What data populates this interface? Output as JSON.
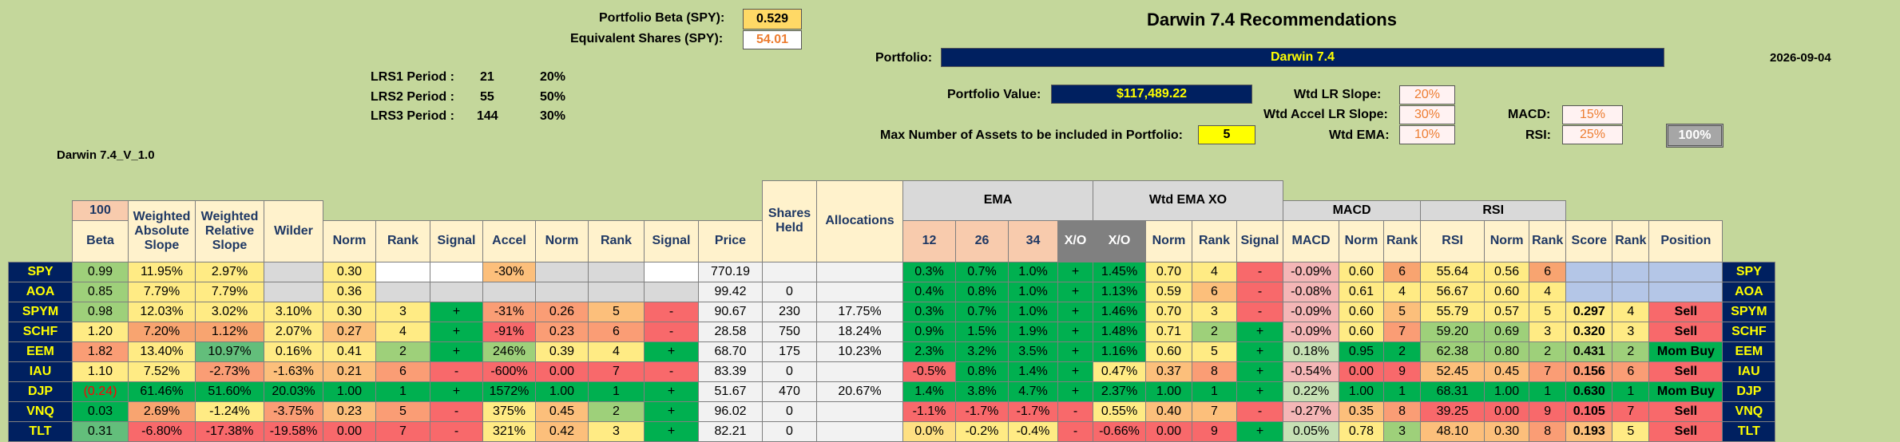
{
  "header": {
    "beta_label": "Portfolio Beta (SPY):",
    "beta_value": "0.529",
    "equiv_label": "Equivalent Shares (SPY):",
    "equiv_value": "54.01",
    "title": "Darwin 7.4 Recommendations",
    "portfolio_label": "Portfolio:",
    "portfolio_value": "Darwin 7.4",
    "date": "2026-09-04",
    "pv_label": "Portfolio Value:",
    "pv_value": "$117,489.22",
    "maxassets_label": "Max Number of Assets to be included in Portfolio:",
    "maxassets_value": "5",
    "version": "Darwin 7.4_V_1.0"
  },
  "lrs": [
    {
      "label": "LRS1 Period :",
      "period": "21",
      "pct": "20%"
    },
    {
      "label": "LRS2 Period :",
      "period": "55",
      "pct": "50%"
    },
    {
      "label": "LRS3 Period :",
      "period": "144",
      "pct": "30%"
    }
  ],
  "weights": {
    "lr_slope_label": "Wtd LR Slope:",
    "lr_slope": "20%",
    "accel_label": "Wtd Accel LR Slope:",
    "accel": "30%",
    "ema_label": "Wtd EMA:",
    "ema": "10%",
    "macd_label": "MACD:",
    "macd": "15%",
    "rsi_label": "RSI:",
    "rsi": "25%",
    "total": "100%"
  },
  "table": {
    "hundred": "100",
    "group_ema": "EMA",
    "group_wtd": "Wtd EMA XO",
    "group_macd": "MACD",
    "group_rsi": "RSI",
    "shares_held": "Shares Held",
    "allocations": "Allocations",
    "cols": [
      "Beta",
      "Weighted Absolute Slope",
      "Weighted Relative Slope",
      "Wilder",
      "Norm",
      "Rank",
      "Signal",
      "Accel",
      "Norm",
      "Rank",
      "Signal",
      "Price",
      "12",
      "26",
      "34",
      "X/O",
      "X/O",
      "Norm",
      "Rank",
      "Signal",
      "MACD",
      "Norm",
      "Rank",
      "RSI",
      "Norm",
      "Rank",
      "Score",
      "Rank",
      "Position"
    ],
    "rows": [
      {
        "t": "SPY",
        "c": [
          "0.99",
          "11.95%",
          "2.97%",
          "",
          "0.30",
          "",
          "",
          "-30%",
          "",
          "",
          "",
          "770.19",
          "",
          "",
          "0.3%",
          "0.7%",
          "1.0%",
          "+",
          "1.45%",
          "0.70",
          "4",
          "-",
          "-0.09%",
          "0.60",
          "6",
          "55.64",
          "0.56",
          "6",
          "",
          "",
          ""
        ]
      },
      {
        "t": "AOA",
        "c": [
          "0.85",
          "7.79%",
          "7.79%",
          "",
          "0.36",
          "",
          "",
          "",
          "",
          "",
          "",
          "99.42",
          "0",
          "",
          "0.4%",
          "0.8%",
          "1.0%",
          "+",
          "1.13%",
          "0.59",
          "6",
          "-",
          "-0.08%",
          "0.61",
          "4",
          "56.67",
          "0.60",
          "4",
          "",
          "",
          ""
        ]
      },
      {
        "t": "SPYM",
        "c": [
          "0.98",
          "12.03%",
          "3.02%",
          "3.10%",
          "0.30",
          "3",
          "+",
          "-31%",
          "0.26",
          "5",
          "-",
          "90.67",
          "230",
          "17.75%",
          "0.3%",
          "0.7%",
          "1.0%",
          "+",
          "1.46%",
          "0.70",
          "3",
          "-",
          "-0.09%",
          "0.60",
          "5",
          "55.79",
          "0.57",
          "5",
          "0.297",
          "4",
          "Sell"
        ]
      },
      {
        "t": "SCHF",
        "c": [
          "1.20",
          "7.20%",
          "1.12%",
          "2.07%",
          "0.27",
          "4",
          "+",
          "-91%",
          "0.23",
          "6",
          "-",
          "28.58",
          "750",
          "18.24%",
          "0.9%",
          "1.5%",
          "1.9%",
          "+",
          "1.48%",
          "0.71",
          "2",
          "+",
          "-0.09%",
          "0.60",
          "7",
          "59.20",
          "0.69",
          "3",
          "0.320",
          "3",
          "Sell"
        ]
      },
      {
        "t": "EEM",
        "c": [
          "1.82",
          "13.40%",
          "10.97%",
          "0.16%",
          "0.41",
          "2",
          "+",
          "246%",
          "0.39",
          "4",
          "+",
          "68.70",
          "175",
          "10.23%",
          "2.3%",
          "3.2%",
          "3.5%",
          "+",
          "1.16%",
          "0.60",
          "5",
          "+",
          "0.18%",
          "0.95",
          "2",
          "62.38",
          "0.80",
          "2",
          "0.431",
          "2",
          "Mom Buy"
        ]
      },
      {
        "t": "IAU",
        "c": [
          "1.10",
          "7.52%",
          "-2.73%",
          "-1.63%",
          "0.21",
          "6",
          "-",
          "-600%",
          "0.00",
          "7",
          "-",
          "83.39",
          "0",
          "",
          "-0.5%",
          "0.8%",
          "1.4%",
          "+",
          "0.47%",
          "0.37",
          "8",
          "+",
          "-0.54%",
          "0.00",
          "9",
          "52.45",
          "0.45",
          "7",
          "0.156",
          "6",
          "Sell"
        ]
      },
      {
        "t": "DJP",
        "c": [
          "(0.24)",
          "61.46%",
          "51.60%",
          "20.03%",
          "1.00",
          "1",
          "+",
          "1572%",
          "1.00",
          "1",
          "+",
          "51.67",
          "470",
          "20.67%",
          "1.4%",
          "3.8%",
          "4.7%",
          "+",
          "2.37%",
          "1.00",
          "1",
          "+",
          "0.22%",
          "1.00",
          "1",
          "68.31",
          "1.00",
          "1",
          "0.630",
          "1",
          "Mom Buy"
        ]
      },
      {
        "t": "VNQ",
        "c": [
          "0.03",
          "2.69%",
          "-1.24%",
          "-3.75%",
          "0.23",
          "5",
          "-",
          "375%",
          "0.45",
          "2",
          "+",
          "96.02",
          "0",
          "",
          "-1.1%",
          "-1.7%",
          "-1.7%",
          "-",
          "0.55%",
          "0.40",
          "7",
          "-",
          "-0.27%",
          "0.35",
          "8",
          "39.25",
          "0.00",
          "9",
          "0.105",
          "7",
          "Sell"
        ]
      },
      {
        "t": "TLT",
        "c": [
          "0.31",
          "-6.80%",
          "-17.38%",
          "-19.58%",
          "0.00",
          "7",
          "-",
          "321%",
          "0.42",
          "3",
          "+",
          "82.21",
          "0",
          "",
          "0.0%",
          "-0.2%",
          "-0.4%",
          "-",
          "-0.66%",
          "0.00",
          "9",
          "+",
          "0.05%",
          "0.78",
          "3",
          "48.10",
          "0.30",
          "8",
          "0.193",
          "5",
          "Sell"
        ]
      }
    ]
  },
  "colors": {
    "ticker_bg": "#002060",
    "ticker_fg": "#ffff00",
    "green": "#00b050",
    "red": "#f8696b",
    "bg": "#c4d79b"
  }
}
